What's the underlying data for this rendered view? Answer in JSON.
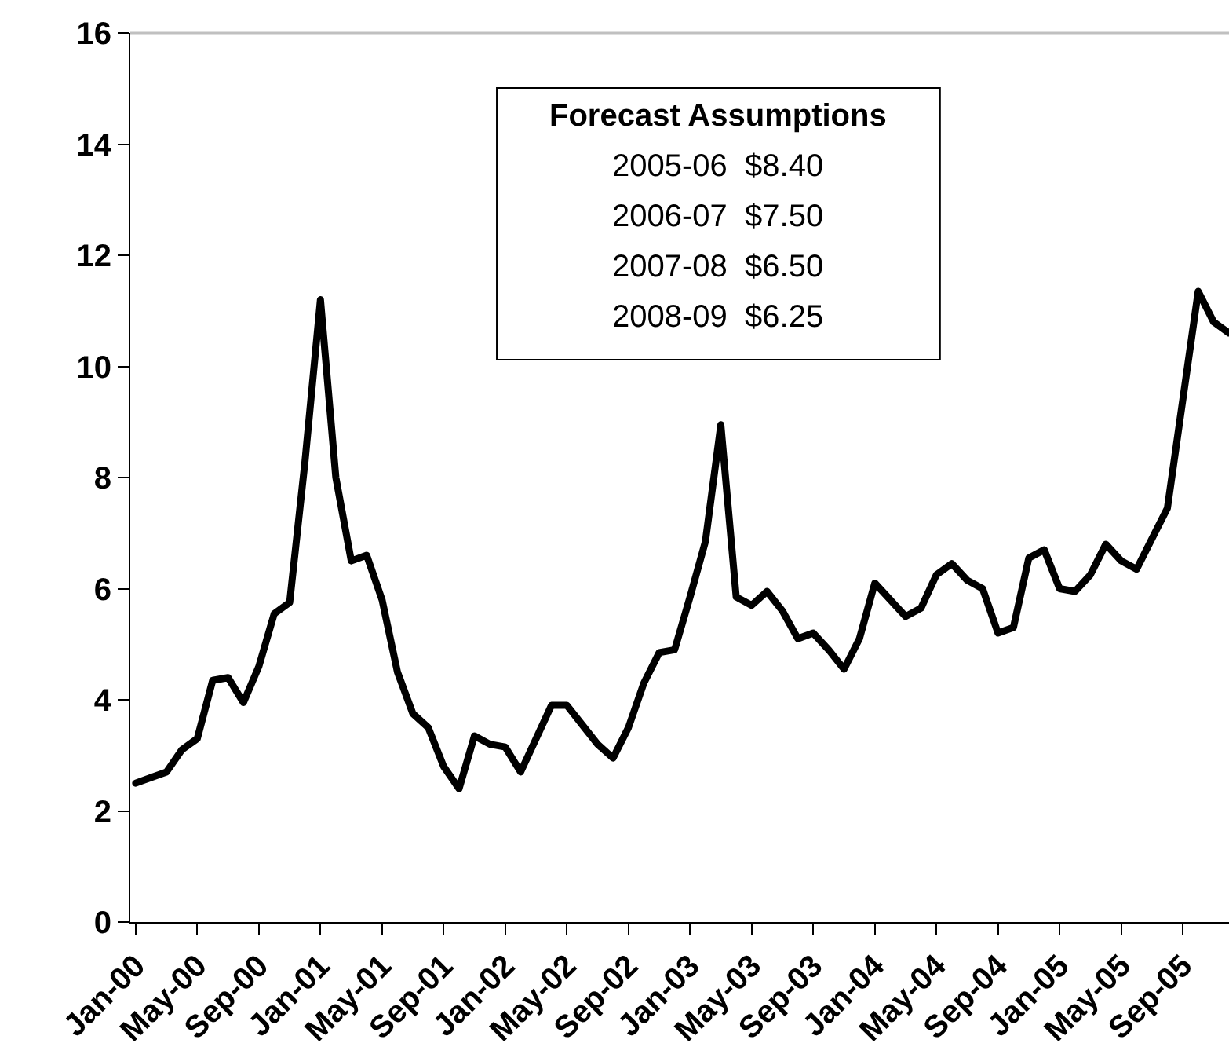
{
  "chart_data": {
    "type": "line",
    "categories": [
      "Jan-00",
      null,
      null,
      null,
      "May-00",
      null,
      null,
      null,
      "Sep-00",
      null,
      null,
      null,
      "Jan-01",
      null,
      null,
      null,
      "May-01",
      null,
      null,
      null,
      "Sep-01",
      null,
      null,
      null,
      "Jan-02",
      null,
      null,
      null,
      "May-02",
      null,
      null,
      null,
      "Sep-02",
      null,
      null,
      null,
      "Jan-03",
      null,
      null,
      null,
      "May-03",
      null,
      null,
      null,
      "Sep-03",
      null,
      null,
      null,
      "Jan-04",
      null,
      null,
      null,
      "May-04",
      null,
      null,
      null,
      "Sep-04",
      null,
      null,
      null,
      "Jan-05",
      null,
      null,
      null,
      "May-05",
      null,
      null,
      null,
      "Sep-05",
      null,
      null,
      null
    ],
    "values": [
      2.5,
      2.6,
      2.7,
      3.1,
      3.3,
      4.35,
      4.4,
      3.95,
      4.6,
      5.55,
      5.75,
      8.3,
      11.2,
      8.0,
      6.5,
      6.6,
      5.8,
      4.5,
      3.75,
      3.5,
      2.8,
      2.4,
      3.35,
      3.2,
      3.15,
      2.7,
      3.3,
      3.9,
      3.9,
      3.55,
      3.2,
      2.95,
      3.5,
      4.3,
      4.85,
      4.9,
      5.85,
      6.85,
      8.95,
      5.85,
      5.7,
      5.95,
      5.6,
      5.1,
      5.2,
      4.9,
      4.55,
      5.1,
      6.1,
      5.8,
      5.5,
      5.65,
      6.25,
      6.45,
      6.15,
      6.0,
      5.2,
      5.3,
      6.55,
      6.7,
      6.0,
      5.95,
      6.25,
      6.8,
      6.5,
      6.35,
      6.9,
      7.45,
      9.4,
      11.35,
      10.8,
      10.6
    ],
    "color": "#000000",
    "ylim": [
      0,
      16
    ],
    "yticks": [
      0,
      2,
      4,
      6,
      8,
      10,
      12,
      14,
      16
    ],
    "line_style": "solid",
    "annotations": [
      "Forecast Assumptions",
      "2005-06  $8.40",
      "2006-07  $7.50",
      "2007-08  $6.50",
      "2008-09  $6.25"
    ]
  }
}
